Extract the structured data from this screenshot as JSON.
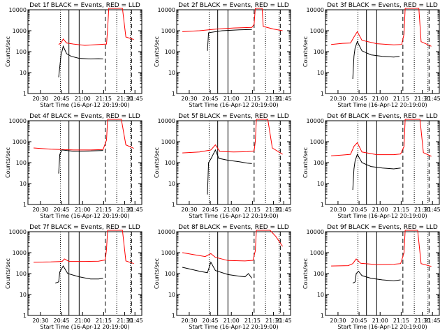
{
  "chart_data": [
    {
      "type": "line",
      "title": "Det 1f BLACK = Events, RED = LLD",
      "xlabel": "Start Time (16-Apr-12 20:19:00)",
      "ylabel": "Counts/sec",
      "yscale": "log",
      "ylim": [
        1,
        10000
      ],
      "x_tick_labels": [
        "20:30",
        "20:45",
        "21:00",
        "21:15",
        "21:30",
        "21:45"
      ],
      "y_tick_labels": [
        "1",
        "10",
        "100",
        "1000",
        "10000"
      ],
      "events": [
        [
          0.27,
          6
        ],
        [
          0.29,
          65
        ],
        [
          0.31,
          180
        ],
        [
          0.34,
          80
        ],
        [
          0.38,
          60
        ],
        [
          0.45,
          48
        ],
        [
          0.55,
          45
        ],
        [
          0.62,
          46
        ],
        [
          0.66,
          45
        ]
      ],
      "lld": [
        [
          0.27,
          220
        ],
        [
          0.29,
          260
        ],
        [
          0.31,
          400
        ],
        [
          0.34,
          260
        ],
        [
          0.4,
          230
        ],
        [
          0.5,
          200
        ],
        [
          0.6,
          215
        ],
        [
          0.69,
          230
        ],
        [
          0.7,
          1200
        ],
        [
          0.71,
          12000
        ],
        [
          0.83,
          12000
        ],
        [
          0.86,
          500
        ],
        [
          0.93,
          380
        ]
      ],
      "solid_lines": [
        0.36,
        0.45
      ],
      "dotted_lines": [
        0.285,
        0.78,
        0.9
      ],
      "dashed_lines": [
        0.68,
        0.91
      ]
    },
    {
      "type": "line",
      "title": "Det 2f BLACK = Events, RED = LLD",
      "xlabel": "Start Time (16-Apr-12 20:19:00)",
      "ylabel": "Counts/sec",
      "yscale": "log",
      "ylim": [
        1,
        10000
      ],
      "x_tick_labels": [
        "20:30",
        "20:45",
        "21:00",
        "21:15",
        "21:30",
        "21:45"
      ],
      "y_tick_labels": [
        "1",
        "10",
        "100",
        "1000",
        "10000"
      ],
      "events": [
        [
          0.27,
          110
        ],
        [
          0.28,
          800
        ],
        [
          0.4,
          1000
        ],
        [
          0.55,
          1100
        ],
        [
          0.66,
          1150
        ]
      ],
      "lld": [
        [
          0.05,
          900
        ],
        [
          0.2,
          1000
        ],
        [
          0.35,
          1200
        ],
        [
          0.5,
          1350
        ],
        [
          0.66,
          1450
        ],
        [
          0.68,
          2000
        ],
        [
          0.69,
          12000
        ],
        [
          0.75,
          12000
        ],
        [
          0.76,
          1600
        ],
        [
          0.85,
          1200
        ],
        [
          0.93,
          1000
        ]
      ],
      "solid_lines": [
        0.36,
        0.45
      ],
      "dotted_lines": [
        0.285,
        0.78,
        0.9
      ],
      "dashed_lines": [
        0.68,
        0.91
      ]
    },
    {
      "type": "line",
      "title": "Det 3f BLACK = Events, RED = LLD",
      "xlabel": "Start Time (16-Apr-12 20:19:00)",
      "ylabel": "Counts/sec",
      "yscale": "log",
      "ylim": [
        1,
        10000
      ],
      "x_tick_labels": [
        "20:30",
        "20:45",
        "21:00",
        "21:15",
        "21:30",
        "21:45"
      ],
      "y_tick_labels": [
        "1",
        "10",
        "100",
        "1000",
        "10000"
      ],
      "events": [
        [
          0.24,
          5
        ],
        [
          0.25,
          60
        ],
        [
          0.26,
          150
        ],
        [
          0.28,
          300
        ],
        [
          0.32,
          110
        ],
        [
          0.4,
          70
        ],
        [
          0.5,
          60
        ],
        [
          0.6,
          55
        ],
        [
          0.65,
          60
        ]
      ],
      "lld": [
        [
          0.05,
          220
        ],
        [
          0.15,
          250
        ],
        [
          0.22,
          260
        ],
        [
          0.25,
          500
        ],
        [
          0.28,
          900
        ],
        [
          0.32,
          350
        ],
        [
          0.45,
          240
        ],
        [
          0.6,
          210
        ],
        [
          0.67,
          220
        ],
        [
          0.69,
          700
        ],
        [
          0.7,
          12000
        ],
        [
          0.82,
          12000
        ],
        [
          0.84,
          300
        ],
        [
          0.93,
          180
        ]
      ],
      "solid_lines": [
        0.36,
        0.45
      ],
      "dotted_lines": [
        0.285,
        0.78,
        0.9
      ],
      "dashed_lines": [
        0.68,
        0.91
      ]
    },
    {
      "type": "line",
      "title": "Det 4f BLACK = Events, RED = LLD",
      "xlabel": "Start Time (16-Apr-12 20:19:00)",
      "ylabel": "Counts/sec",
      "yscale": "log",
      "ylim": [
        1,
        10000
      ],
      "x_tick_labels": [
        "20:30",
        "20:45",
        "21:00",
        "21:15",
        "21:30",
        "21:45"
      ],
      "y_tick_labels": [
        "1",
        "10",
        "100",
        "1000",
        "10000"
      ],
      "events": [
        [
          0.27,
          30
        ],
        [
          0.28,
          250
        ],
        [
          0.3,
          400
        ],
        [
          0.4,
          350
        ],
        [
          0.55,
          360
        ],
        [
          0.66,
          380
        ]
      ],
      "lld": [
        [
          0.05,
          500
        ],
        [
          0.2,
          440
        ],
        [
          0.3,
          420
        ],
        [
          0.4,
          400
        ],
        [
          0.55,
          400
        ],
        [
          0.66,
          420
        ],
        [
          0.69,
          1200
        ],
        [
          0.7,
          12000
        ],
        [
          0.82,
          12000
        ],
        [
          0.86,
          700
        ],
        [
          0.93,
          480
        ]
      ],
      "solid_lines": [
        0.36,
        0.45
      ],
      "dotted_lines": [
        0.285,
        0.78,
        0.9
      ],
      "dashed_lines": [
        0.68,
        0.91
      ]
    },
    {
      "type": "line",
      "title": "Det 5f BLACK = Events, RED = LLD",
      "xlabel": "Start Time (16-Apr-12 20:19:00)",
      "ylabel": "Counts/sec",
      "yscale": "log",
      "ylim": [
        1,
        10000
      ],
      "x_tick_labels": [
        "20:30",
        "20:45",
        "21:00",
        "21:15",
        "21:30",
        "21:45"
      ],
      "y_tick_labels": [
        "1",
        "10",
        "100",
        "1000",
        "10000"
      ],
      "events": [
        [
          0.27,
          3
        ],
        [
          0.28,
          100
        ],
        [
          0.3,
          150
        ],
        [
          0.34,
          400
        ],
        [
          0.37,
          160
        ],
        [
          0.45,
          130
        ],
        [
          0.55,
          110
        ],
        [
          0.62,
          95
        ],
        [
          0.66,
          90
        ]
      ],
      "lld": [
        [
          0.05,
          290
        ],
        [
          0.2,
          320
        ],
        [
          0.3,
          400
        ],
        [
          0.34,
          700
        ],
        [
          0.38,
          340
        ],
        [
          0.5,
          320
        ],
        [
          0.62,
          330
        ],
        [
          0.68,
          360
        ],
        [
          0.69,
          1000
        ],
        [
          0.7,
          12000
        ],
        [
          0.8,
          12000
        ],
        [
          0.84,
          500
        ],
        [
          0.93,
          250
        ]
      ],
      "solid_lines": [
        0.36,
        0.45
      ],
      "dotted_lines": [
        0.285,
        0.78,
        0.9
      ],
      "dashed_lines": [
        0.68,
        0.91
      ]
    },
    {
      "type": "line",
      "title": "Det 6f BLACK = Events, RED = LLD",
      "xlabel": "Start Time (16-Apr-12 20:19:00)",
      "ylabel": "Counts/sec",
      "yscale": "log",
      "ylim": [
        1,
        10000
      ],
      "x_tick_labels": [
        "20:30",
        "20:45",
        "21:00",
        "21:15",
        "21:30",
        "21:45"
      ],
      "y_tick_labels": [
        "1",
        "10",
        "100",
        "1000",
        "10000"
      ],
      "events": [
        [
          0.24,
          5
        ],
        [
          0.25,
          50
        ],
        [
          0.26,
          120
        ],
        [
          0.28,
          250
        ],
        [
          0.32,
          100
        ],
        [
          0.4,
          65
        ],
        [
          0.5,
          55
        ],
        [
          0.6,
          50
        ],
        [
          0.66,
          55
        ]
      ],
      "lld": [
        [
          0.05,
          210
        ],
        [
          0.15,
          230
        ],
        [
          0.22,
          250
        ],
        [
          0.25,
          600
        ],
        [
          0.28,
          900
        ],
        [
          0.32,
          320
        ],
        [
          0.45,
          240
        ],
        [
          0.6,
          240
        ],
        [
          0.66,
          260
        ],
        [
          0.69,
          600
        ],
        [
          0.7,
          12000
        ],
        [
          0.83,
          12000
        ],
        [
          0.86,
          300
        ],
        [
          0.93,
          200
        ]
      ],
      "solid_lines": [
        0.36,
        0.45
      ],
      "dotted_lines": [
        0.285,
        0.78,
        0.9
      ],
      "dashed_lines": [
        0.68,
        0.91
      ]
    },
    {
      "type": "line",
      "title": "Det 7f BLACK = Events, RED = LLD",
      "xlabel": "Start Time (16-Apr-12 20:19:00)",
      "ylabel": "Counts/sec",
      "yscale": "log",
      "ylim": [
        1,
        10000
      ],
      "x_tick_labels": [
        "20:30",
        "20:45",
        "21:00",
        "21:15",
        "21:30",
        "21:45"
      ],
      "y_tick_labels": [
        "1",
        "10",
        "100",
        "1000",
        "10000"
      ],
      "events": [
        [
          0.24,
          35
        ],
        [
          0.27,
          40
        ],
        [
          0.28,
          120
        ],
        [
          0.31,
          230
        ],
        [
          0.35,
          100
        ],
        [
          0.45,
          70
        ],
        [
          0.55,
          55
        ],
        [
          0.62,
          55
        ],
        [
          0.66,
          60
        ]
      ],
      "lld": [
        [
          0.05,
          350
        ],
        [
          0.2,
          360
        ],
        [
          0.3,
          380
        ],
        [
          0.32,
          500
        ],
        [
          0.36,
          380
        ],
        [
          0.5,
          380
        ],
        [
          0.62,
          390
        ],
        [
          0.68,
          450
        ],
        [
          0.69,
          1500
        ],
        [
          0.7,
          12000
        ],
        [
          0.83,
          12000
        ],
        [
          0.86,
          400
        ],
        [
          0.93,
          300
        ]
      ],
      "solid_lines": [
        0.36,
        0.45
      ],
      "dotted_lines": [
        0.285,
        0.78,
        0.9
      ],
      "dashed_lines": [
        0.68,
        0.91
      ]
    },
    {
      "type": "line",
      "title": "Det 8f BLACK = Events, RED = LLD",
      "xlabel": "Start Time (16-Apr-12 20:19:00)",
      "ylabel": "Counts/sec",
      "yscale": "log",
      "ylim": [
        1,
        10000
      ],
      "x_tick_labels": [
        "20:30",
        "20:45",
        "21:00",
        "21:15",
        "21:30",
        "21:45"
      ],
      "y_tick_labels": [
        "1",
        "10",
        "100",
        "1000",
        "10000"
      ],
      "events": [
        [
          0.05,
          200
        ],
        [
          0.2,
          130
        ],
        [
          0.27,
          110
        ],
        [
          0.3,
          350
        ],
        [
          0.34,
          140
        ],
        [
          0.45,
          90
        ],
        [
          0.55,
          75
        ],
        [
          0.6,
          70
        ],
        [
          0.63,
          100
        ],
        [
          0.66,
          60
        ]
      ],
      "lld": [
        [
          0.05,
          1000
        ],
        [
          0.15,
          800
        ],
        [
          0.25,
          650
        ],
        [
          0.3,
          900
        ],
        [
          0.34,
          600
        ],
        [
          0.45,
          420
        ],
        [
          0.6,
          400
        ],
        [
          0.67,
          430
        ],
        [
          0.69,
          1200
        ],
        [
          0.7,
          12000
        ],
        [
          0.82,
          12000
        ],
        [
          0.87,
          6000
        ],
        [
          0.93,
          2000
        ]
      ],
      "solid_lines": [
        0.36,
        0.45
      ],
      "dotted_lines": [
        0.285,
        0.78,
        0.9
      ],
      "dashed_lines": [
        0.68,
        0.91
      ]
    },
    {
      "type": "line",
      "title": "Det 9f BLACK = Events, RED = LLD",
      "xlabel": "Start Time (16-Apr-12 20:19:00)",
      "ylabel": "Counts/sec",
      "yscale": "log",
      "ylim": [
        1,
        10000
      ],
      "x_tick_labels": [
        "20:30",
        "20:45",
        "21:00",
        "21:15",
        "21:30",
        "21:45"
      ],
      "y_tick_labels": [
        "1",
        "10",
        "100",
        "1000",
        "10000"
      ],
      "events": [
        [
          0.24,
          35
        ],
        [
          0.26,
          40
        ],
        [
          0.27,
          100
        ],
        [
          0.29,
          130
        ],
        [
          0.32,
          80
        ],
        [
          0.4,
          60
        ],
        [
          0.5,
          50
        ],
        [
          0.6,
          45
        ],
        [
          0.66,
          50
        ]
      ],
      "lld": [
        [
          0.05,
          230
        ],
        [
          0.2,
          240
        ],
        [
          0.24,
          300
        ],
        [
          0.27,
          500
        ],
        [
          0.31,
          310
        ],
        [
          0.45,
          270
        ],
        [
          0.6,
          280
        ],
        [
          0.66,
          300
        ],
        [
          0.69,
          1000
        ],
        [
          0.7,
          12000
        ],
        [
          0.81,
          12000
        ],
        [
          0.84,
          300
        ],
        [
          0.93,
          220
        ]
      ],
      "solid_lines": [
        0.36,
        0.45
      ],
      "dotted_lines": [
        0.285,
        0.78,
        0.9
      ],
      "dashed_lines": [
        0.68,
        0.91
      ]
    }
  ],
  "colors": {
    "events": "#000000",
    "lld": "#ff0000",
    "axes": "#000000",
    "background": "#ffffff"
  }
}
